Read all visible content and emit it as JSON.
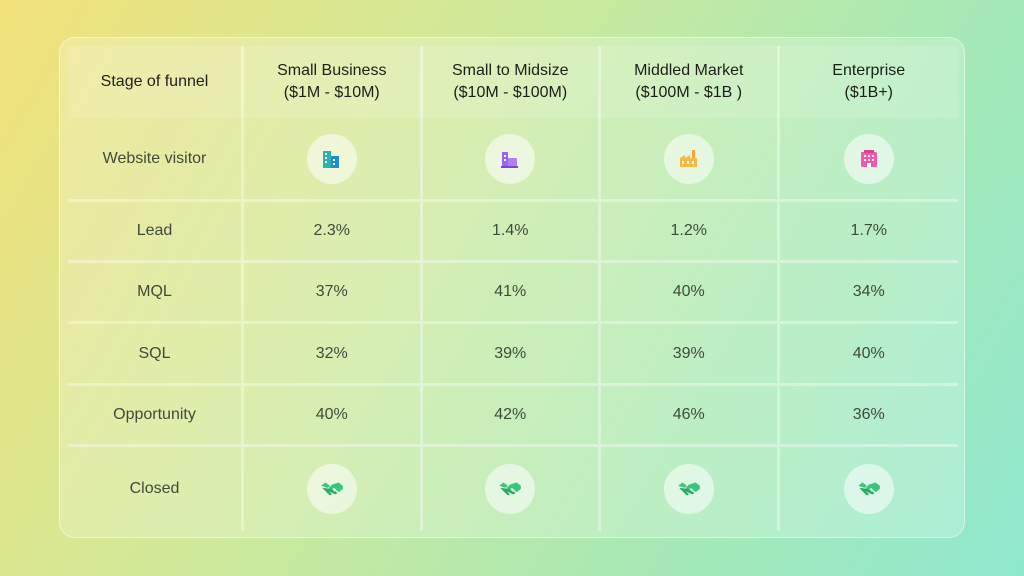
{
  "chart_data": {
    "type": "table",
    "columns": [
      {
        "line1": "Stage of funnel",
        "line2": ""
      },
      {
        "line1": "Small Business",
        "line2": "($1M - $10M)"
      },
      {
        "line1": "Small to Midsize",
        "line2": "($10M - $100M)"
      },
      {
        "line1": "Middled Market",
        "line2": "($100M - $1B )"
      },
      {
        "line1": "Enterprise",
        "line2": "($1B+)"
      }
    ],
    "rows": [
      {
        "stage": "Website visitor",
        "values": [
          "building-icon",
          "building-icon",
          "factory-icon",
          "office-icon"
        ]
      },
      {
        "stage": "Lead",
        "values": [
          "2.3%",
          "1.4%",
          "1.2%",
          "1.7%"
        ]
      },
      {
        "stage": "MQL",
        "values": [
          "37%",
          "41%",
          "40%",
          "34%"
        ]
      },
      {
        "stage": "SQL",
        "values": [
          "32%",
          "39%",
          "39%",
          "40%"
        ]
      },
      {
        "stage": "Opportunity",
        "values": [
          "40%",
          "42%",
          "46%",
          "36%"
        ]
      },
      {
        "stage": "Closed",
        "values": [
          "handshake-icon",
          "handshake-icon",
          "handshake-icon",
          "handshake-icon"
        ]
      }
    ],
    "icon_colors": [
      "#2bb3b0",
      "#9a63f2",
      "#f2a93b",
      "#f15aa8"
    ],
    "handshake_color": "#35c77a"
  }
}
